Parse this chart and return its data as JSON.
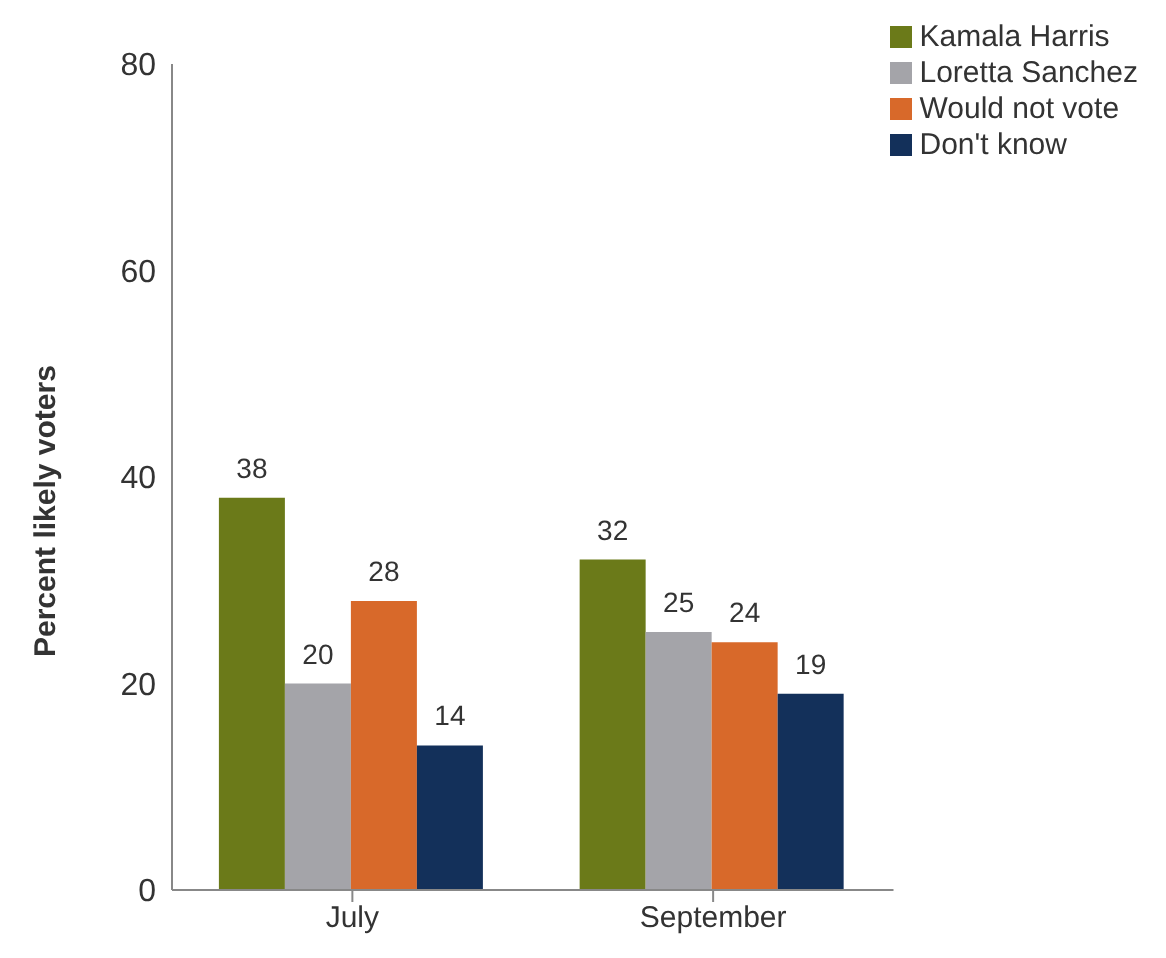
{
  "chart_data": {
    "type": "bar",
    "ylabel": "Percent likely voters",
    "categories": [
      "July",
      "September"
    ],
    "series": [
      {
        "name": "Kamala Harris",
        "color": "#6b7a19",
        "values": [
          38,
          32
        ]
      },
      {
        "name": "Loretta Sanchez",
        "color": "#a4a4a9",
        "values": [
          20,
          25
        ]
      },
      {
        "name": "Would not vote",
        "color": "#d8692a",
        "values": [
          28,
          24
        ]
      },
      {
        "name": "Don't know",
        "color": "#13305a",
        "values": [
          14,
          19
        ]
      }
    ],
    "ylim": [
      0,
      80
    ],
    "yticks": [
      0,
      20,
      40,
      60,
      80
    ],
    "grid": false,
    "legend": "top right",
    "data_labels": true
  }
}
